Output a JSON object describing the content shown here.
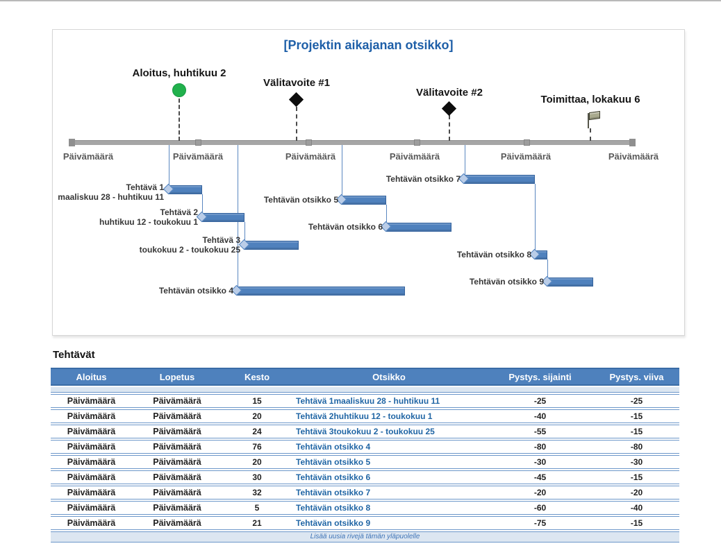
{
  "chart": {
    "title": "[Projektin aikajanan otsikko]",
    "axis_label": "Päivämäärä",
    "milestones": [
      {
        "label": "Aloitus, huhtikuu 2",
        "marker": "circle",
        "color": "#21b14c"
      },
      {
        "label": "Välitavoite #1",
        "marker": "diamond",
        "color": "#0d0d0d"
      },
      {
        "label": "Välitavoite #2",
        "marker": "diamond",
        "color": "#0d0d0d"
      },
      {
        "label": "Toimittaa, lokakuu 6",
        "marker": "flag",
        "color": "#a9aa8e"
      }
    ],
    "tasks": [
      {
        "label": "Tehtävä 1",
        "dates": "maaliskuu 28 - huhtikuu 11"
      },
      {
        "label": "Tehtävä 2",
        "dates": "huhtikuu 12 - toukokuu 1"
      },
      {
        "label": "Tehtävä 3",
        "dates": "toukokuu 2 - toukokuu 25"
      },
      {
        "label": "Tehtävän otsikko 4",
        "dates": ""
      },
      {
        "label": "Tehtävän otsikko 5",
        "dates": ""
      },
      {
        "label": "Tehtävän otsikko 6",
        "dates": ""
      },
      {
        "label": "Tehtävän otsikko 7",
        "dates": ""
      },
      {
        "label": "Tehtävän otsikko 8",
        "dates": ""
      },
      {
        "label": "Tehtävän otsikko 9",
        "dates": ""
      }
    ],
    "colors": {
      "bar": "#4f81bd",
      "accent": "#4e81bd",
      "band": "#dce6f1",
      "title": "#1e5fa8",
      "timeline": "#a6a6a6"
    }
  },
  "table": {
    "heading": "Tehtävät",
    "columns": [
      "Aloitus",
      "Lopetus",
      "Kesto",
      "Otsikko",
      "Pystys. sijainti",
      "Pystys. viiva"
    ],
    "rows": [
      [
        "Päivämäärä",
        "Päivämäärä",
        "15",
        "Tehtävä 1maaliskuu 28 - huhtikuu 11",
        "-25",
        "-25"
      ],
      [
        "Päivämäärä",
        "Päivämäärä",
        "20",
        "Tehtävä 2huhtikuu 12 - toukokuu 1",
        "-40",
        "-15"
      ],
      [
        "Päivämäärä",
        "Päivämäärä",
        "24",
        "Tehtävä 3toukokuu 2 - toukokuu 25",
        "-55",
        "-15"
      ],
      [
        "Päivämäärä",
        "Päivämäärä",
        "76",
        "Tehtävän otsikko 4",
        "-80",
        "-80"
      ],
      [
        "Päivämäärä",
        "Päivämäärä",
        "20",
        "Tehtävän otsikko 5",
        "-30",
        "-30"
      ],
      [
        "Päivämäärä",
        "Päivämäärä",
        "30",
        "Tehtävän otsikko 6",
        "-45",
        "-15"
      ],
      [
        "Päivämäärä",
        "Päivämäärä",
        "32",
        "Tehtävän otsikko 7",
        "-20",
        "-20"
      ],
      [
        "Päivämäärä",
        "Päivämäärä",
        "5",
        "Tehtävän otsikko 8",
        "-60",
        "-40"
      ],
      [
        "Päivämäärä",
        "Päivämäärä",
        "21",
        "Tehtävän otsikko 9",
        "-75",
        "-15"
      ]
    ],
    "footer": "Lisää uusia rivejä tämän yläpuolelle"
  },
  "chart_data": {
    "type": "timeline",
    "title": "[Projektin aikajanan otsikko]",
    "x_axis": {
      "tick_label": "Päivämäärä",
      "tick_count": 6
    },
    "milestones": [
      {
        "label": "Aloitus, huhtikuu 2",
        "marker": "green-circle"
      },
      {
        "label": "Välitavoite #1",
        "marker": "black-diamond"
      },
      {
        "label": "Välitavoite #2",
        "marker": "black-diamond"
      },
      {
        "label": "Toimittaa, lokakuu 6",
        "marker": "flag"
      }
    ],
    "tasks": [
      {
        "otsikko": "Tehtävä 1",
        "dates": "maaliskuu 28 - huhtikuu 11",
        "aloitus": "Päivämäärä",
        "lopetus": "Päivämäärä",
        "kesto": 15,
        "pystys_sijainti": -25,
        "pystys_viiva": -25
      },
      {
        "otsikko": "Tehtävä 2",
        "dates": "huhtikuu 12 - toukokuu 1",
        "aloitus": "Päivämäärä",
        "lopetus": "Päivämäärä",
        "kesto": 20,
        "pystys_sijainti": -40,
        "pystys_viiva": -15
      },
      {
        "otsikko": "Tehtävä 3",
        "dates": "toukokuu 2 - toukokuu 25",
        "aloitus": "Päivämäärä",
        "lopetus": "Päivämäärä",
        "kesto": 24,
        "pystys_sijainti": -55,
        "pystys_viiva": -15
      },
      {
        "otsikko": "Tehtävän otsikko 4",
        "aloitus": "Päivämäärä",
        "lopetus": "Päivämäärä",
        "kesto": 76,
        "pystys_sijainti": -80,
        "pystys_viiva": -80
      },
      {
        "otsikko": "Tehtävän otsikko 5",
        "aloitus": "Päivämäärä",
        "lopetus": "Päivämäärä",
        "kesto": 20,
        "pystys_sijainti": -30,
        "pystys_viiva": -30
      },
      {
        "otsikko": "Tehtävän otsikko 6",
        "aloitus": "Päivämäärä",
        "lopetus": "Päivämäärä",
        "kesto": 30,
        "pystys_sijainti": -45,
        "pystys_viiva": -15
      },
      {
        "otsikko": "Tehtävän otsikko 7",
        "aloitus": "Päivämäärä",
        "lopetus": "Päivämäärä",
        "kesto": 32,
        "pystys_sijainti": -20,
        "pystys_viiva": -20
      },
      {
        "otsikko": "Tehtävän otsikko 8",
        "aloitus": "Päivämäärä",
        "lopetus": "Päivämäärä",
        "kesto": 5,
        "pystys_sijainti": -60,
        "pystys_viiva": -40
      },
      {
        "otsikko": "Tehtävän otsikko 9",
        "aloitus": "Päivämäärä",
        "lopetus": "Päivämäärä",
        "kesto": 21,
        "pystys_sijainti": -75,
        "pystys_viiva": -15
      }
    ]
  }
}
